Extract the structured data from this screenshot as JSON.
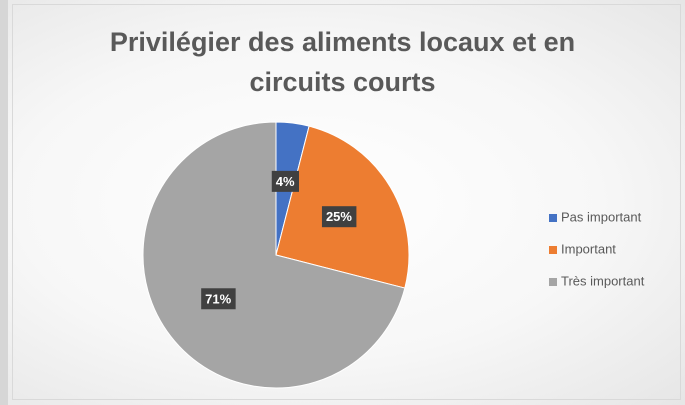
{
  "chart_data": {
    "type": "pie",
    "title": "Privilégier des aliments locaux et en circuits courts",
    "categories": [
      "Pas important",
      "Important",
      "Très important"
    ],
    "values": [
      4,
      25,
      71
    ],
    "value_labels": [
      "4%",
      "25%",
      "71%"
    ],
    "colors": [
      "#4472c4",
      "#ed7d31",
      "#a5a5a5"
    ],
    "legend": "right"
  }
}
